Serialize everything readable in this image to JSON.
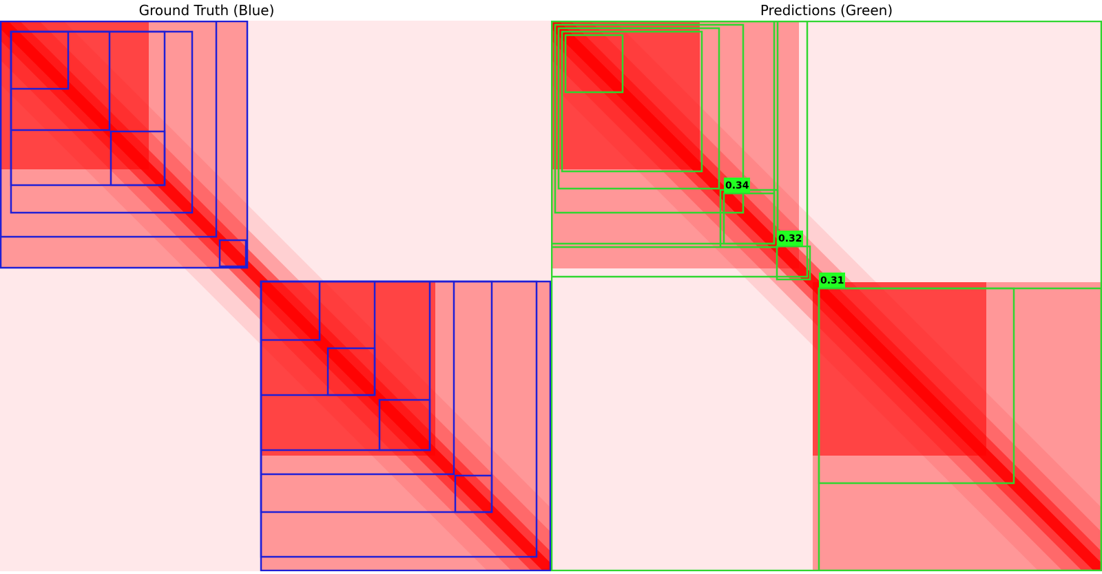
{
  "titles": {
    "ground_truth": "Ground Truth (Blue)",
    "predictions": "Predictions (Green)"
  },
  "colors": {
    "ground_truth_box": "#1f1fd6",
    "prediction_box": "#2fd62f",
    "heatmap_signal": "#ff0000",
    "heatmap_background": "#ffe8ea",
    "score_label_bg": "#22ff22"
  },
  "heatmap": {
    "matrix_size": 800,
    "domains": [
      {
        "start": 0,
        "end": 360
      },
      {
        "start": 380,
        "end": 800
      }
    ]
  },
  "ground_truth_boxes": [
    {
      "start": 0,
      "end": 360
    },
    {
      "start": 0,
      "end": 315
    },
    {
      "start": 15,
      "end": 280
    },
    {
      "start": 15,
      "end": 240
    },
    {
      "start": 15,
      "end": 160
    },
    {
      "start": 15,
      "end": 100
    },
    {
      "start": 160,
      "end": 240
    },
    {
      "start": 318,
      "end": 358
    },
    {
      "start": 378,
      "end": 800
    },
    {
      "start": 378,
      "end": 780
    },
    {
      "start": 378,
      "end": 715
    },
    {
      "start": 378,
      "end": 660
    },
    {
      "start": 378,
      "end": 625
    },
    {
      "start": 378,
      "end": 545
    },
    {
      "start": 378,
      "end": 465
    },
    {
      "start": 475,
      "end": 545
    },
    {
      "start": 550,
      "end": 625
    },
    {
      "start": 660,
      "end": 715
    }
  ],
  "prediction_boxes": [
    {
      "start": 0,
      "end": 800
    },
    {
      "start": 0,
      "end": 373
    },
    {
      "start": 0,
      "end": 325,
      "score_label": ""
    },
    {
      "start": 5,
      "end": 280
    },
    {
      "start": 10,
      "end": 245
    },
    {
      "start": 15,
      "end": 220
    },
    {
      "start": 20,
      "end": 105
    },
    {
      "start": 0,
      "end": 330
    },
    {
      "start": 245,
      "end": 330
    },
    {
      "start": 250,
      "end": 325,
      "score_label": "0.34"
    },
    {
      "start": 327,
      "end": 377,
      "score_label": "0.32"
    },
    {
      "start": 388,
      "end": 673,
      "score_label": "0.31"
    },
    {
      "start": 388,
      "end": 800
    }
  ]
}
